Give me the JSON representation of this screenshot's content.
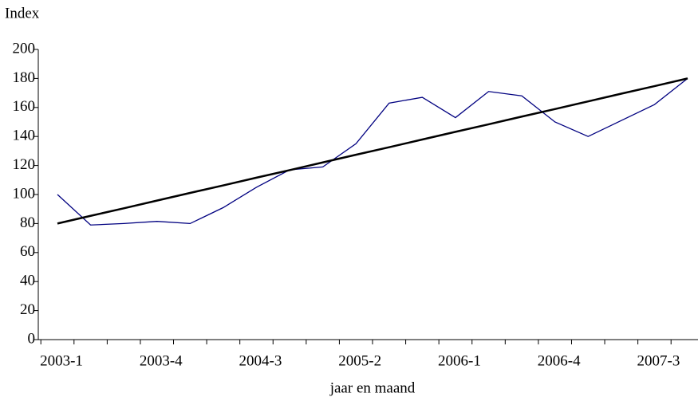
{
  "chart_data": {
    "type": "line",
    "y_label": "Index",
    "x_label": "jaar en maand",
    "categories": [
      "2003-1",
      null,
      null,
      "2003-4",
      null,
      null,
      "2004-3",
      null,
      null,
      "2005-2",
      null,
      null,
      "2006-1",
      null,
      null,
      "2006-4",
      null,
      null,
      "2007-3",
      null
    ],
    "series": [
      {
        "color": "#000080",
        "width": 1.3,
        "values": [
          100,
          79,
          80,
          81.5,
          80,
          91,
          105,
          117,
          119,
          135,
          163,
          167,
          153,
          171,
          168,
          150,
          140,
          151,
          162,
          180
        ]
      },
      {
        "color": "#000000",
        "width": 2.5,
        "values": [
          80,
          85.3,
          90.5,
          95.8,
          101.1,
          106.3,
          111.6,
          116.8,
          122.1,
          127.4,
          132.6,
          137.9,
          143.2,
          148.4,
          153.7,
          158.9,
          164.2,
          169.5,
          174.7,
          180
        ]
      }
    ],
    "ylim": [
      0,
      200
    ],
    "yticks": [
      0,
      20,
      40,
      60,
      80,
      100,
      120,
      140,
      160,
      180,
      200
    ]
  }
}
